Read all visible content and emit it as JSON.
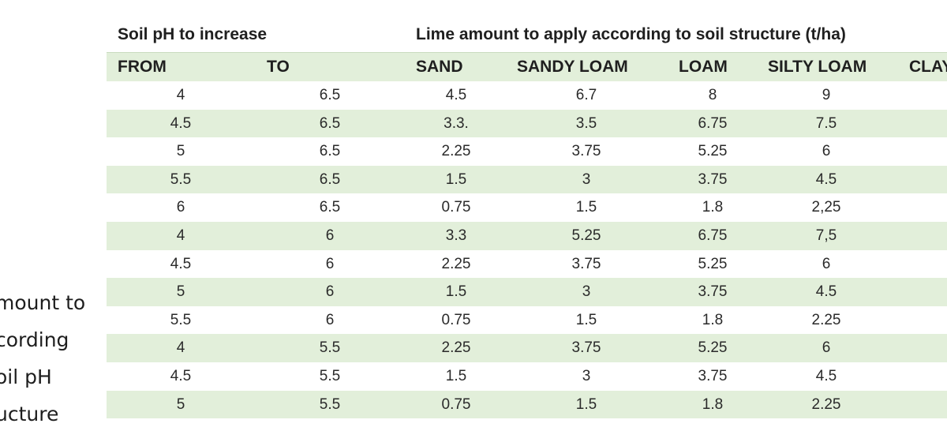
{
  "side_caption": [
    "mount to",
    "cording",
    "oil pH",
    "ucture"
  ],
  "table": {
    "group_header_left": "Soil pH to increase",
    "group_header_right": "Lime amount to apply according to soil structure (t/ha)",
    "columns": [
      "FROM",
      "TO",
      "SAND",
      "SANDY LOAM",
      "LOAM",
      "SILTY LOAM",
      "CLAY"
    ],
    "rows": [
      [
        "4",
        "6.5",
        "4.5",
        "6.7",
        "8",
        "9",
        ""
      ],
      [
        "4.5",
        "6.5",
        "3.3.",
        "3.5",
        "6.75",
        "7.5",
        ""
      ],
      [
        "5",
        "6.5",
        "2.25",
        "3.75",
        "5.25",
        "6",
        ""
      ],
      [
        "5.5",
        "6.5",
        "1.5",
        "3",
        "3.75",
        "4.5",
        ""
      ],
      [
        "6",
        "6.5",
        "0.75",
        "1.5",
        "1.8",
        "2,25",
        ""
      ],
      [
        "4",
        "6",
        "3.3",
        "5.25",
        "6.75",
        "7,5",
        ""
      ],
      [
        "4.5",
        "6",
        "2.25",
        "3.75",
        "5.25",
        "6",
        ""
      ],
      [
        "5",
        "6",
        "1.5",
        "3",
        "3.75",
        "4.5",
        ""
      ],
      [
        "5.5",
        "6",
        "0.75",
        "1.5",
        "1.8",
        "2.25",
        ""
      ],
      [
        "4",
        "5.5",
        "2.25",
        "3.75",
        "5.25",
        "6",
        ""
      ],
      [
        "4.5",
        "5.5",
        "1.5",
        "3",
        "3.75",
        "4.5",
        ""
      ],
      [
        "5",
        "5.5",
        "0.75",
        "1.5",
        "1.8",
        "2.25",
        ""
      ]
    ]
  }
}
